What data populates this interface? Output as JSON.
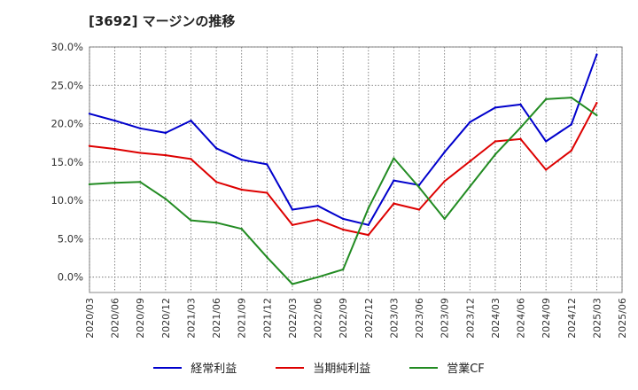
{
  "title": "[3692]  マージンの推移",
  "chart_data": {
    "type": "line",
    "title": "[3692]  マージンの推移",
    "xlabel": "",
    "ylabel": "",
    "ylim": [
      -2,
      30
    ],
    "yticks": [
      "0.0%",
      "5.0%",
      "10.0%",
      "15.0%",
      "20.0%",
      "25.0%",
      "30.0%"
    ],
    "x": [
      "2020/03",
      "2020/06",
      "2020/09",
      "2020/12",
      "2021/03",
      "2021/06",
      "2021/09",
      "2021/12",
      "2022/03",
      "2022/06",
      "2022/09",
      "2022/12",
      "2023/03",
      "2023/06",
      "2023/09",
      "2023/12",
      "2024/03",
      "2024/06",
      "2024/09",
      "2024/12",
      "2025/03",
      "2025/06"
    ],
    "grid": true,
    "legend_position": "bottom",
    "series": [
      {
        "name": "経常利益",
        "color": "#0000cc",
        "values": [
          21.3,
          20.4,
          19.4,
          18.8,
          20.4,
          16.8,
          15.3,
          14.7,
          8.8,
          9.3,
          7.6,
          6.8,
          12.6,
          12.0,
          16.3,
          20.2,
          22.1,
          22.5,
          17.7,
          19.9,
          29.0,
          null
        ]
      },
      {
        "name": "当期純利益",
        "color": "#dd0000",
        "values": [
          17.1,
          16.7,
          16.2,
          15.9,
          15.4,
          12.4,
          11.4,
          11.0,
          6.8,
          7.5,
          6.2,
          5.5,
          9.6,
          8.8,
          12.5,
          15.1,
          17.7,
          18.0,
          14.0,
          16.5,
          22.7,
          null
        ]
      },
      {
        "name": "営業CF",
        "color": "#228b22",
        "values": [
          12.1,
          12.3,
          12.4,
          10.2,
          7.4,
          7.1,
          6.3,
          2.6,
          -0.9,
          0.0,
          1.0,
          9.0,
          15.5,
          11.7,
          7.6,
          11.8,
          16.0,
          19.5,
          23.2,
          23.4,
          21.1,
          null
        ]
      }
    ]
  }
}
